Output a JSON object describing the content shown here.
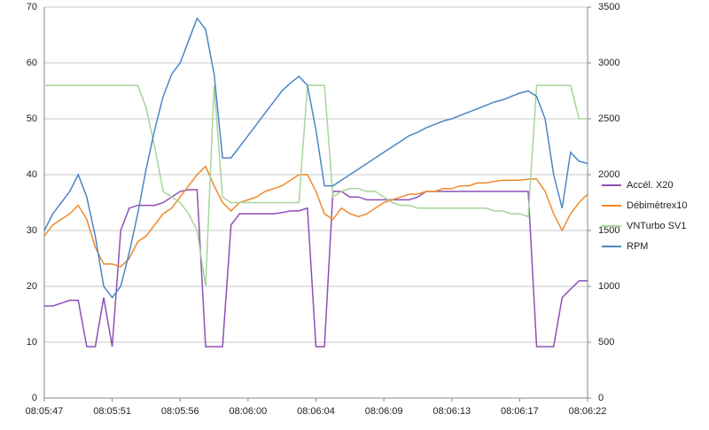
{
  "chart_data": {
    "type": "line",
    "categories": [
      "08:05:47",
      null,
      null,
      null,
      null,
      null,
      null,
      null,
      "08:05:51",
      null,
      null,
      null,
      null,
      null,
      null,
      null,
      "08:05:56",
      null,
      null,
      null,
      null,
      null,
      null,
      null,
      "08:06:00",
      null,
      null,
      null,
      null,
      null,
      null,
      null,
      "08:06:04",
      null,
      null,
      null,
      null,
      null,
      null,
      null,
      "08:06:09",
      null,
      null,
      null,
      null,
      null,
      null,
      null,
      "08:06:13",
      null,
      null,
      null,
      null,
      null,
      null,
      null,
      "08:06:17",
      null,
      null,
      null,
      null,
      null,
      null,
      null,
      "08:06:22"
    ],
    "ylim": [
      0,
      70
    ],
    "yticks": [
      0,
      10,
      20,
      30,
      40,
      50,
      60,
      70
    ],
    "y2lim": [
      0,
      3500
    ],
    "y2ticks": [
      0,
      500,
      1000,
      1500,
      2000,
      2500,
      3000,
      3500
    ],
    "grid": true,
    "legend": "right",
    "series": [
      {
        "name": "Accél. X20",
        "color": "#8e4fb5",
        "values": [
          16.5,
          16.5,
          17,
          17.5,
          17.5,
          9.2,
          9.2,
          18,
          9.2,
          30,
          34,
          34.5,
          34.5,
          34.5,
          35,
          36,
          37,
          37.3,
          37.3,
          9.2,
          9.2,
          9.2,
          31,
          33,
          33,
          33,
          33,
          33,
          33.2,
          33.5,
          33.5,
          34,
          9.2,
          9.2,
          37,
          37,
          36,
          36,
          35.5,
          35.5,
          35.5,
          35.5,
          35.5,
          35.5,
          36,
          37,
          37,
          37,
          37,
          37,
          37,
          37,
          37,
          37,
          37,
          37,
          37,
          37,
          9.2,
          9.2,
          9.2,
          18,
          19.5,
          21,
          21
        ]
      },
      {
        "name": "Débimètrex10",
        "color": "#f0892b",
        "values": [
          29,
          31,
          32,
          33,
          34.5,
          32,
          27,
          24,
          24,
          23.5,
          25,
          28,
          29,
          31,
          33,
          34,
          36,
          38,
          40,
          41.5,
          38,
          35,
          33.5,
          35,
          35.5,
          36,
          37,
          37.5,
          38,
          39,
          40,
          40,
          37,
          33,
          32,
          34,
          33,
          32.5,
          33,
          34,
          35,
          35.5,
          36,
          36.5,
          36.5,
          37,
          37,
          37.5,
          37.5,
          38,
          38,
          38.5,
          38.5,
          38.8,
          39,
          39,
          39,
          39.2,
          39.2,
          37,
          33,
          30,
          33,
          35,
          36.5
        ]
      },
      {
        "name": "VNTurbo SV1",
        "color": "#a8d49c",
        "values": [
          56,
          56,
          56,
          56,
          56,
          56,
          56,
          56,
          56,
          56,
          56,
          56,
          52,
          45,
          37,
          36,
          35,
          33,
          30,
          20,
          56,
          36,
          35,
          35,
          35,
          35,
          35,
          35,
          35,
          35,
          35,
          56,
          56,
          56,
          36,
          37,
          37.5,
          37.5,
          37,
          37,
          36,
          35,
          34.5,
          34.5,
          34,
          34,
          34,
          34,
          34,
          34,
          34,
          34,
          34,
          33.5,
          33.5,
          33,
          33,
          32.5,
          56,
          56,
          56,
          56,
          56,
          50,
          50
        ]
      },
      {
        "name": "RPM",
        "color": "#4a86c5",
        "axis": "y2",
        "values": [
          1500,
          1650,
          1750,
          1850,
          2000,
          1800,
          1450,
          1000,
          900,
          1000,
          1300,
          1650,
          2050,
          2400,
          2700,
          2900,
          3000,
          3200,
          3400,
          3300,
          2900,
          2150,
          2150,
          2250,
          2350,
          2450,
          2550,
          2650,
          2750,
          2820,
          2880,
          2800,
          2400,
          1900,
          1900,
          1950,
          2000,
          2050,
          2100,
          2150,
          2200,
          2250,
          2300,
          2350,
          2380,
          2420,
          2450,
          2480,
          2500,
          2530,
          2560,
          2590,
          2620,
          2650,
          2670,
          2700,
          2730,
          2750,
          2700,
          2500,
          2000,
          1700,
          2200,
          2120,
          2100
        ]
      }
    ]
  }
}
